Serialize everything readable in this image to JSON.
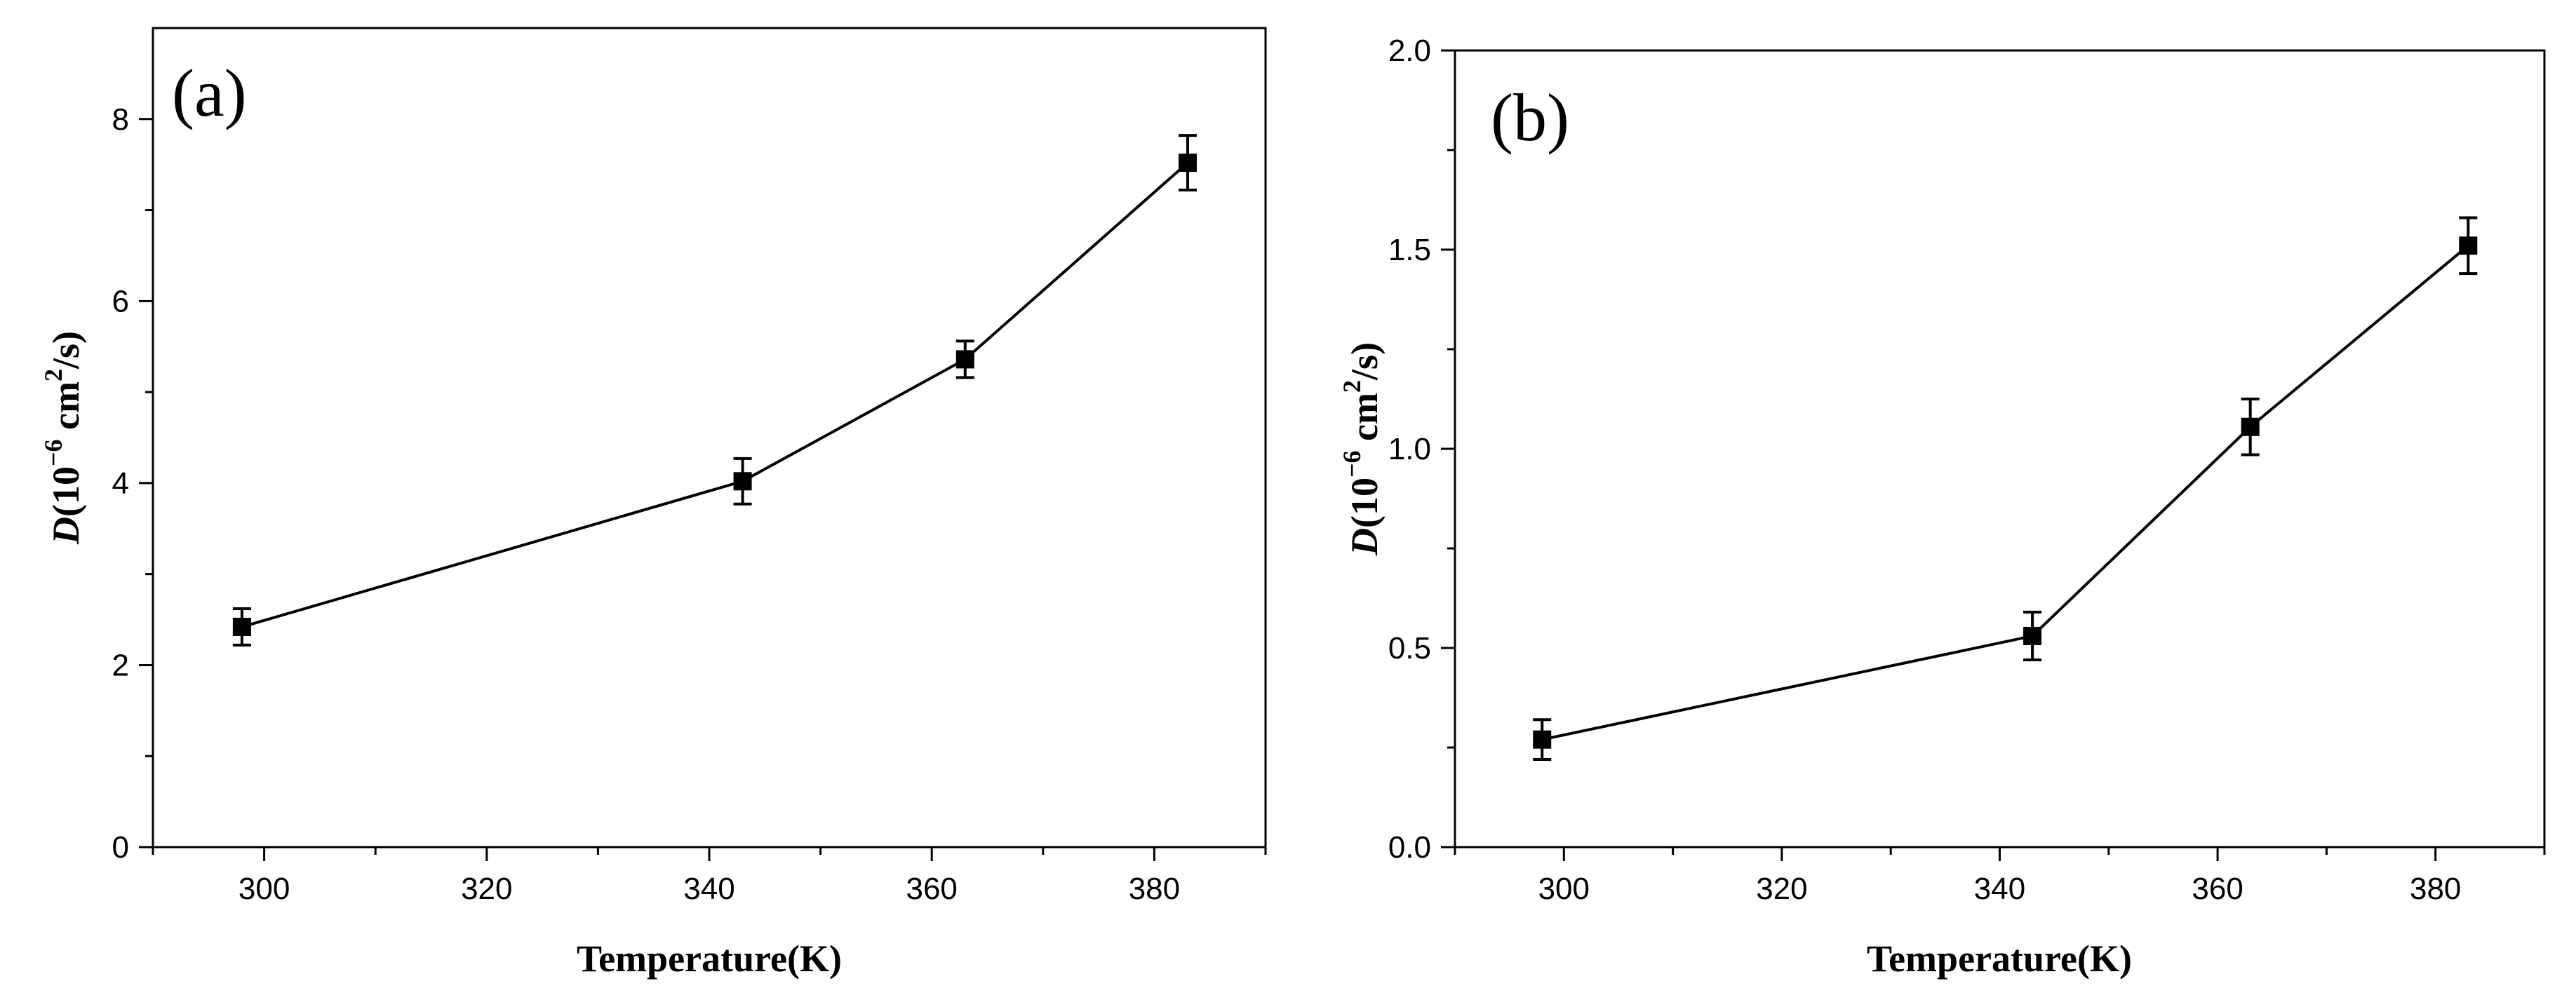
{
  "chart_data": [
    {
      "type": "line",
      "panel_label": "(a)",
      "xlabel": "Temperature(K)",
      "ylabel": {
        "symbol": "D",
        "open": "(10",
        "exp1": "−6",
        "unit": " cm",
        "exp2": "2",
        "close": "/s)"
      },
      "xlim": [
        290,
        390
      ],
      "ylim": [
        0,
        9
      ],
      "xticks": [
        300,
        320,
        340,
        360,
        380
      ],
      "yticks": [
        0,
        2,
        4,
        6,
        8
      ],
      "x": [
        298,
        343,
        363,
        383
      ],
      "y": [
        2.42,
        4.02,
        5.36,
        7.52
      ],
      "yerr": [
        0.2,
        0.25,
        0.2,
        0.3
      ]
    },
    {
      "type": "line",
      "panel_label": "(b)",
      "xlabel": "Temperature(K)",
      "ylabel": {
        "symbol": "D",
        "open": "(10",
        "exp1": "−6",
        "unit": " cm",
        "exp2": "2",
        "close": "/s)"
      },
      "xlim": [
        290,
        390
      ],
      "ylim": [
        0,
        2.0
      ],
      "xticks": [
        300,
        320,
        340,
        360,
        380
      ],
      "yticks": [
        "0.0",
        "0.5",
        "1.0",
        "1.5",
        "2.0"
      ],
      "x": [
        298,
        343,
        363,
        383
      ],
      "y": [
        0.27,
        0.53,
        1.055,
        1.51
      ],
      "yerr": [
        0.05,
        0.06,
        0.07,
        0.07
      ]
    }
  ]
}
